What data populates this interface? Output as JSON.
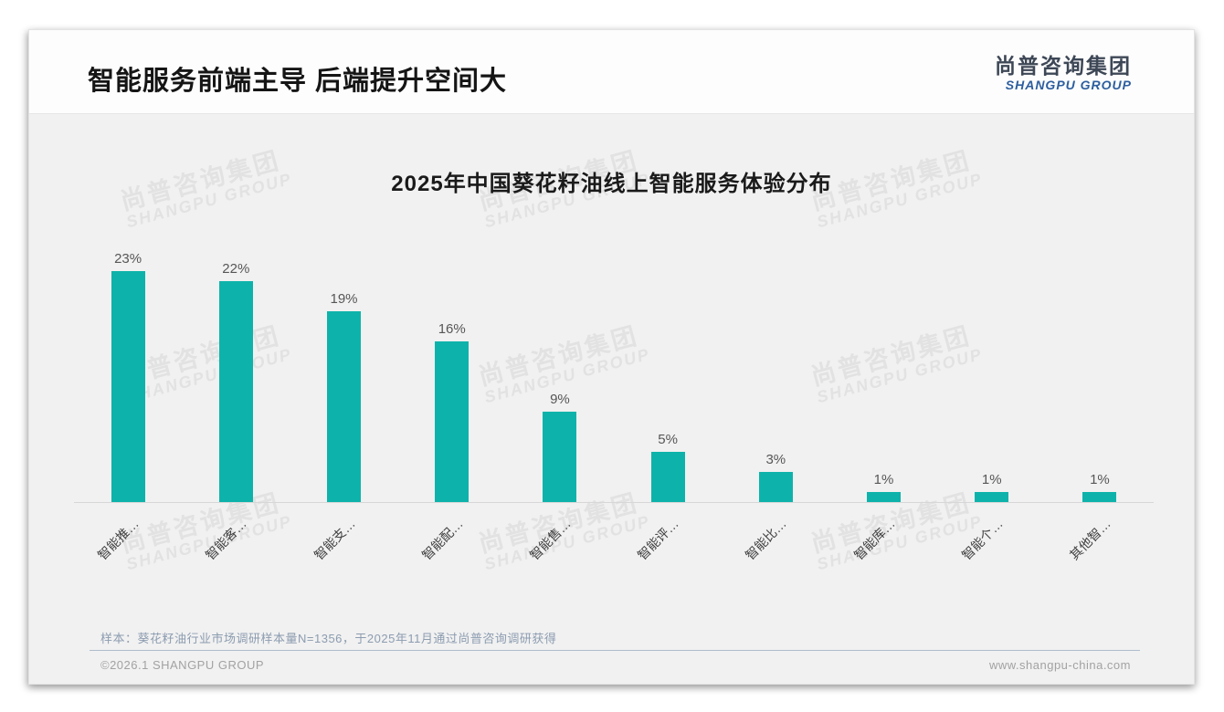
{
  "header": {
    "title": "智能服务前端主导 后端提升空间大",
    "logo_cn": "尚普咨询集团",
    "logo_en": "SHANGPU GROUP"
  },
  "watermark": {
    "line1": "尚普咨询集团",
    "line2": "SHANGPU GROUP"
  },
  "chart_data": {
    "type": "bar",
    "title": "2025年中国葵花籽油线上智能服务体验分布",
    "categories": [
      "智能推…",
      "智能客…",
      "智能支…",
      "智能配…",
      "智能售…",
      "智能评…",
      "智能比…",
      "智能库…",
      "智能个…",
      "其他智…"
    ],
    "values": [
      23,
      22,
      19,
      16,
      9,
      5,
      3,
      1,
      1,
      1
    ],
    "data_labels": [
      "23%",
      "22%",
      "19%",
      "16%",
      "9%",
      "5%",
      "3%",
      "1%",
      "1%",
      "1%"
    ],
    "unit": "%",
    "bar_color": "#0db3aa",
    "ylim": [
      0,
      25
    ],
    "grid": false,
    "legend": false,
    "label_rotation_deg": -45
  },
  "footnote": "样本：葵花籽油行业市场调研样本量N=1356，于2025年11月通过尚普咨询调研获得",
  "footer": {
    "copyright": "©2026.1 SHANGPU GROUP",
    "website": "www.shangpu-china.com"
  }
}
